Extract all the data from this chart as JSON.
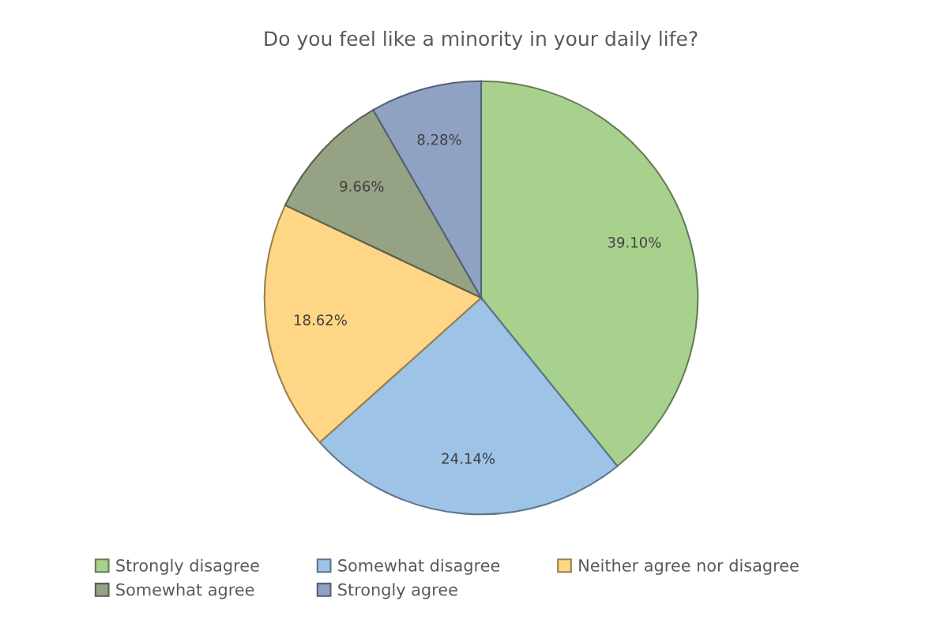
{
  "chart_data": {
    "type": "pie",
    "title": "Do you feel like a minority in your daily life?",
    "categories": [
      "Strongly disagree",
      "Somewhat disagree",
      "Neither agree nor disagree",
      "Somewhat agree",
      "Strongly agree"
    ],
    "values": [
      39.1,
      24.14,
      18.62,
      9.66,
      8.28
    ],
    "colors": [
      "#a9d18e",
      "#9dc3e6",
      "#ffd685",
      "#95a284",
      "#8fa2c4"
    ],
    "value_labels": [
      "39.10%",
      "24.14%",
      "18.62%",
      "9.66%",
      "8.28%"
    ],
    "legend": "bottom"
  }
}
